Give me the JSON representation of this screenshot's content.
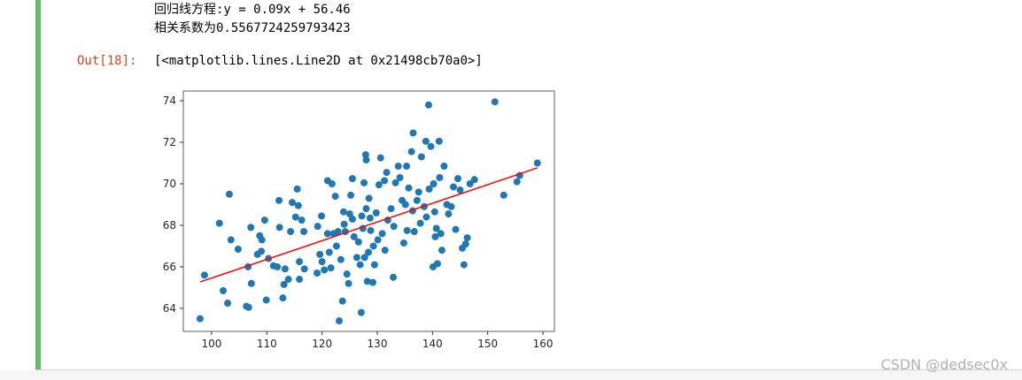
{
  "output": {
    "lines": [
      "回归线方程:y = 0.09x + 56.46",
      "相关系数为0.5567724259793423"
    ],
    "out_prompt": "Out[18]:",
    "out_text": "[<matplotlib.lines.Line2D at 0x21498cb70a0>]"
  },
  "watermark": "CSDN @dedsec0x",
  "chart_data": {
    "type": "scatter",
    "xlim": [
      94.87,
      162.08
    ],
    "ylim": [
      62.89,
      74.47
    ],
    "xticks": [
      100,
      110,
      120,
      130,
      140,
      150,
      160
    ],
    "yticks": [
      64,
      66,
      68,
      70,
      72,
      74
    ],
    "series": [
      {
        "type": "scatter",
        "color": "#1f77b4",
        "x": [
          97.9,
          98.7,
          101.4,
          102.1,
          102.9,
          103.2,
          103.5,
          104.8,
          106.3,
          106.7,
          106.6,
          107.1,
          107.2,
          108.3,
          108.7,
          109.0,
          109.1,
          109.6,
          109.9,
          110.3,
          111.2,
          111.9,
          112.2,
          112.3,
          112.9,
          113.1,
          113.3,
          113.9,
          114.3,
          114.6,
          115.2,
          115.5,
          115.7,
          115.9,
          115.9,
          116.3,
          116.7,
          116.8,
          119.1,
          119.2,
          119.6,
          119.9,
          120.0,
          120.4,
          121.0,
          121.0,
          121.3,
          121.6,
          121.8,
          122.1,
          122.4,
          122.6,
          122.9,
          123.1,
          123.4,
          123.7,
          123.9,
          124.0,
          124.2,
          124.5,
          124.8,
          125.0,
          125.2,
          125.5,
          125.5,
          125.8,
          126.3,
          126.6,
          126.9,
          127.1,
          127.2,
          127.4,
          127.6,
          127.7,
          127.9,
          128.0,
          128.0,
          128.2,
          128.4,
          128.5,
          128.7,
          128.8,
          129.2,
          129.3,
          129.5,
          129.8,
          130.1,
          130.3,
          130.6,
          130.9,
          131.3,
          131.4,
          131.7,
          131.9,
          132.5,
          132.9,
          133.0,
          133.3,
          133.8,
          134.1,
          134.5,
          134.8,
          135.1,
          135.3,
          135.4,
          135.7,
          136.2,
          136.4,
          136.5,
          136.7,
          137.2,
          137.5,
          137.8,
          138.0,
          138.5,
          138.8,
          138.9,
          139.3,
          139.4,
          139.7,
          140.1,
          140.2,
          140.4,
          140.5,
          140.7,
          140.9,
          141.2,
          141.3,
          141.5,
          141.7,
          142.1,
          142.6,
          142.9,
          143.4,
          143.8,
          144.2,
          144.6,
          145.0,
          145.4,
          145.7,
          146.0,
          146.3,
          146.8,
          147.6,
          151.3,
          152.9,
          155.3,
          155.8,
          159.0
        ],
        "values": [
          63.5,
          65.6,
          68.1,
          64.85,
          64.25,
          69.5,
          67.3,
          66.85,
          64.1,
          64.05,
          66.0,
          67.9,
          65.2,
          66.6,
          67.5,
          66.75,
          67.3,
          68.25,
          64.4,
          66.4,
          66.05,
          66.0,
          69.2,
          67.9,
          64.5,
          65.15,
          65.9,
          65.4,
          67.7,
          69.1,
          68.4,
          69.75,
          68.95,
          65.4,
          66.25,
          68.25,
          67.7,
          65.9,
          65.7,
          67.95,
          66.6,
          68.45,
          66.25,
          65.85,
          70.15,
          67.6,
          66.7,
          65.95,
          70.0,
          67.6,
          69.4,
          67.0,
          67.7,
          63.4,
          66.35,
          64.35,
          68.65,
          68.05,
          67.7,
          65.65,
          65.2,
          68.55,
          69.45,
          70.25,
          68.3,
          67.45,
          66.45,
          67.2,
          66.1,
          63.8,
          68.45,
          67.85,
          70.05,
          66.45,
          71.4,
          71.15,
          68.8,
          65.3,
          66.7,
          69.3,
          68.35,
          67.75,
          65.25,
          67.0,
          66.1,
          68.6,
          67.3,
          69.95,
          71.25,
          67.6,
          70.15,
          66.8,
          70.55,
          68.25,
          68.8,
          65.5,
          67.95,
          70.05,
          70.85,
          70.3,
          69.2,
          67.15,
          69.0,
          70.85,
          67.75,
          69.8,
          71.55,
          68.7,
          72.45,
          67.7,
          69.2,
          69.6,
          68.1,
          71.3,
          68.9,
          72.05,
          68.4,
          73.8,
          69.75,
          71.8,
          66.0,
          70.0,
          68.65,
          67.45,
          67.85,
          66.15,
          72.05,
          70.3,
          67.6,
          66.8,
          70.85,
          69.0,
          68.55,
          68.9,
          69.85,
          67.8,
          70.25,
          69.7,
          66.9,
          66.1,
          67.1,
          67.4,
          70.0,
          70.2,
          73.95,
          69.45,
          70.1,
          70.4,
          71.0
        ]
      },
      {
        "type": "line",
        "color": "#ff0000",
        "x": [
          97.9,
          159.0
        ],
        "values": [
          65.27,
          70.77
        ]
      }
    ]
  }
}
